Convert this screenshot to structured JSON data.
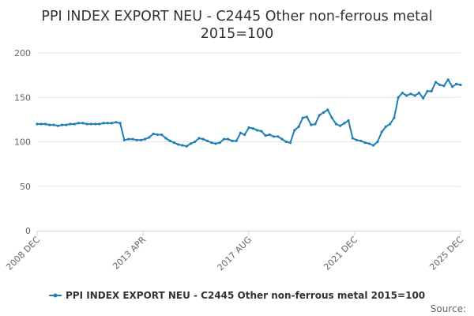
{
  "chart_data": {
    "type": "line",
    "title_line1": "PPI INDEX EXPORT NEU - C2445 Other non-ferrous metal",
    "title_line2": "2015=100",
    "ylim": [
      0,
      200
    ],
    "yticks": [
      0,
      50,
      100,
      150,
      200
    ],
    "x_ticks": [
      "2008 DEC",
      "2013 APR",
      "2017 AUG",
      "2021 DEC",
      "2025 DEC"
    ],
    "x_range": [
      "2008-12",
      "2025-12"
    ],
    "grid": true,
    "legend_position": "bottom",
    "color": "#1f7fb5",
    "source_label": "Source:",
    "series": [
      {
        "name": "PPI INDEX EXPORT NEU - C2445 Other non-ferrous metal 2015=100",
        "x": [
          "2008-12",
          "2009-02",
          "2009-04",
          "2009-06",
          "2009-08",
          "2009-10",
          "2009-12",
          "2010-02",
          "2010-04",
          "2010-06",
          "2010-08",
          "2010-10",
          "2010-12",
          "2011-02",
          "2011-04",
          "2011-06",
          "2011-08",
          "2011-10",
          "2011-12",
          "2012-02",
          "2012-04",
          "2012-06",
          "2012-08",
          "2012-10",
          "2012-12",
          "2013-02",
          "2013-04",
          "2013-06",
          "2013-08",
          "2013-10",
          "2013-12",
          "2014-02",
          "2014-04",
          "2014-06",
          "2014-08",
          "2014-10",
          "2014-12",
          "2015-02",
          "2015-04",
          "2015-06",
          "2015-08",
          "2015-10",
          "2015-12",
          "2016-02",
          "2016-04",
          "2016-06",
          "2016-08",
          "2016-10",
          "2016-12",
          "2017-02",
          "2017-04",
          "2017-06",
          "2017-08",
          "2017-10",
          "2017-12",
          "2018-02",
          "2018-04",
          "2018-06",
          "2018-08",
          "2018-10",
          "2018-12",
          "2019-02",
          "2019-04",
          "2019-06",
          "2019-08",
          "2019-10",
          "2019-12",
          "2020-02",
          "2020-04",
          "2020-06",
          "2020-08",
          "2020-10",
          "2020-12",
          "2021-02",
          "2021-04",
          "2021-06",
          "2021-08",
          "2021-10",
          "2021-12",
          "2022-02",
          "2022-04",
          "2022-06",
          "2022-08",
          "2022-10",
          "2022-12",
          "2023-02",
          "2023-04",
          "2023-06",
          "2023-08",
          "2023-10",
          "2023-12",
          "2024-02",
          "2024-04",
          "2024-06",
          "2024-08",
          "2024-10",
          "2024-12",
          "2025-02",
          "2025-04",
          "2025-06",
          "2025-08",
          "2025-10",
          "2025-12"
        ],
        "values": [
          120,
          120,
          120,
          119,
          119,
          118,
          119,
          119,
          120,
          120,
          121,
          121,
          120,
          120,
          120,
          120,
          121,
          121,
          121,
          122,
          121,
          102,
          103,
          103,
          102,
          102,
          103,
          105,
          109,
          108,
          108,
          104,
          101,
          99,
          97,
          96,
          95,
          98,
          100,
          104,
          103,
          101,
          99,
          98,
          99,
          103,
          103,
          101,
          101,
          110,
          108,
          116,
          115,
          113,
          112,
          107,
          108,
          106,
          106,
          103,
          100,
          99,
          113,
          117,
          127,
          128,
          119,
          120,
          130,
          133,
          136,
          127,
          120,
          118,
          121,
          124,
          104,
          102,
          101,
          99,
          98,
          96,
          100,
          111,
          117,
          120,
          127,
          150,
          155,
          152,
          154,
          152,
          155,
          149,
          157,
          157,
          167,
          164,
          163,
          170,
          162,
          165,
          164
        ]
      }
    ]
  }
}
